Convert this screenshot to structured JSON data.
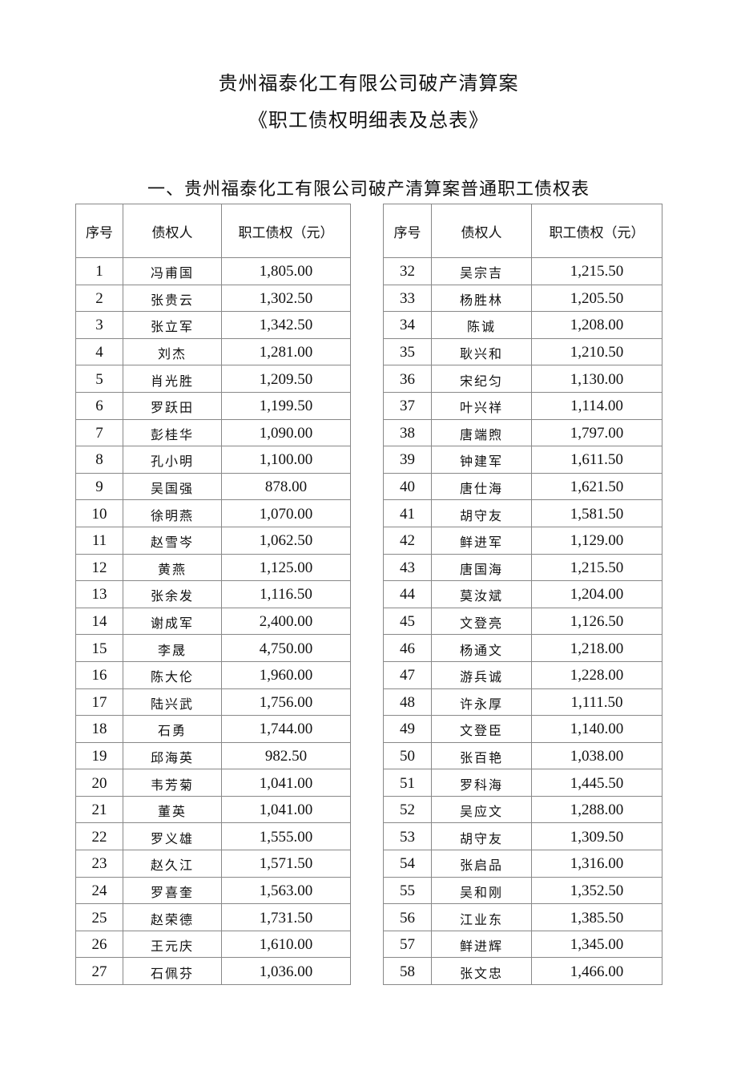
{
  "title_line1": "贵州福泰化工有限公司破产清算案",
  "title_line2": "《职工债权明细表及总表》",
  "section_title": "一、贵州福泰化工有限公司破产清算案普通职工债权表",
  "headers": [
    "序号",
    "债权人",
    "职工债权（元）"
  ],
  "left_rows": [
    [
      "1",
      "冯甫国",
      "1,805.00"
    ],
    [
      "2",
      "张贵云",
      "1,302.50"
    ],
    [
      "3",
      "张立军",
      "1,342.50"
    ],
    [
      "4",
      "刘杰",
      "1,281.00"
    ],
    [
      "5",
      "肖光胜",
      "1,209.50"
    ],
    [
      "6",
      "罗跃田",
      "1,199.50"
    ],
    [
      "7",
      "彭桂华",
      "1,090.00"
    ],
    [
      "8",
      "孔小明",
      "1,100.00"
    ],
    [
      "9",
      "吴国强",
      "878.00"
    ],
    [
      "10",
      "徐明燕",
      "1,070.00"
    ],
    [
      "11",
      "赵雪岑",
      "1,062.50"
    ],
    [
      "12",
      "黄燕",
      "1,125.00"
    ],
    [
      "13",
      "张余发",
      "1,116.50"
    ],
    [
      "14",
      "谢成军",
      "2,400.00"
    ],
    [
      "15",
      "李晟",
      "4,750.00"
    ],
    [
      "16",
      "陈大伦",
      "1,960.00"
    ],
    [
      "17",
      "陆兴武",
      "1,756.00"
    ],
    [
      "18",
      "石勇",
      "1,744.00"
    ],
    [
      "19",
      "邱海英",
      "982.50"
    ],
    [
      "20",
      "韦芳菊",
      "1,041.00"
    ],
    [
      "21",
      "董英",
      "1,041.00"
    ],
    [
      "22",
      "罗义雄",
      "1,555.00"
    ],
    [
      "23",
      "赵久江",
      "1,571.50"
    ],
    [
      "24",
      "罗喜奎",
      "1,563.00"
    ],
    [
      "25",
      "赵荣德",
      "1,731.50"
    ],
    [
      "26",
      "王元庆",
      "1,610.00"
    ],
    [
      "27",
      "石佩芬",
      "1,036.00"
    ]
  ],
  "right_rows": [
    [
      "32",
      "吴宗吉",
      "1,215.50"
    ],
    [
      "33",
      "杨胜林",
      "1,205.50"
    ],
    [
      "34",
      "陈诚",
      "1,208.00"
    ],
    [
      "35",
      "耿兴和",
      "1,210.50"
    ],
    [
      "36",
      "宋纪匀",
      "1,130.00"
    ],
    [
      "37",
      "叶兴祥",
      "1,114.00"
    ],
    [
      "38",
      "唐端煦",
      "1,797.00"
    ],
    [
      "39",
      "钟建军",
      "1,611.50"
    ],
    [
      "40",
      "唐仕海",
      "1,621.50"
    ],
    [
      "41",
      "胡守友",
      "1,581.50"
    ],
    [
      "42",
      "鲜进军",
      "1,129.00"
    ],
    [
      "43",
      "唐国海",
      "1,215.50"
    ],
    [
      "44",
      "莫汝斌",
      "1,204.00"
    ],
    [
      "45",
      "文登亮",
      "1,126.50"
    ],
    [
      "46",
      "杨通文",
      "1,218.00"
    ],
    [
      "47",
      "游兵诚",
      "1,228.00"
    ],
    [
      "48",
      "许永厚",
      "1,111.50"
    ],
    [
      "49",
      "文登臣",
      "1,140.00"
    ],
    [
      "50",
      "张百艳",
      "1,038.00"
    ],
    [
      "51",
      "罗科海",
      "1,445.50"
    ],
    [
      "52",
      "吴应文",
      "1,288.00"
    ],
    [
      "53",
      "胡守友",
      "1,309.50"
    ],
    [
      "54",
      "张启品",
      "1,316.00"
    ],
    [
      "55",
      "吴和刚",
      "1,352.50"
    ],
    [
      "56",
      "江业东",
      "1,385.50"
    ],
    [
      "57",
      "鲜进辉",
      "1,345.00"
    ],
    [
      "58",
      "张文忠",
      "1,466.00"
    ]
  ]
}
